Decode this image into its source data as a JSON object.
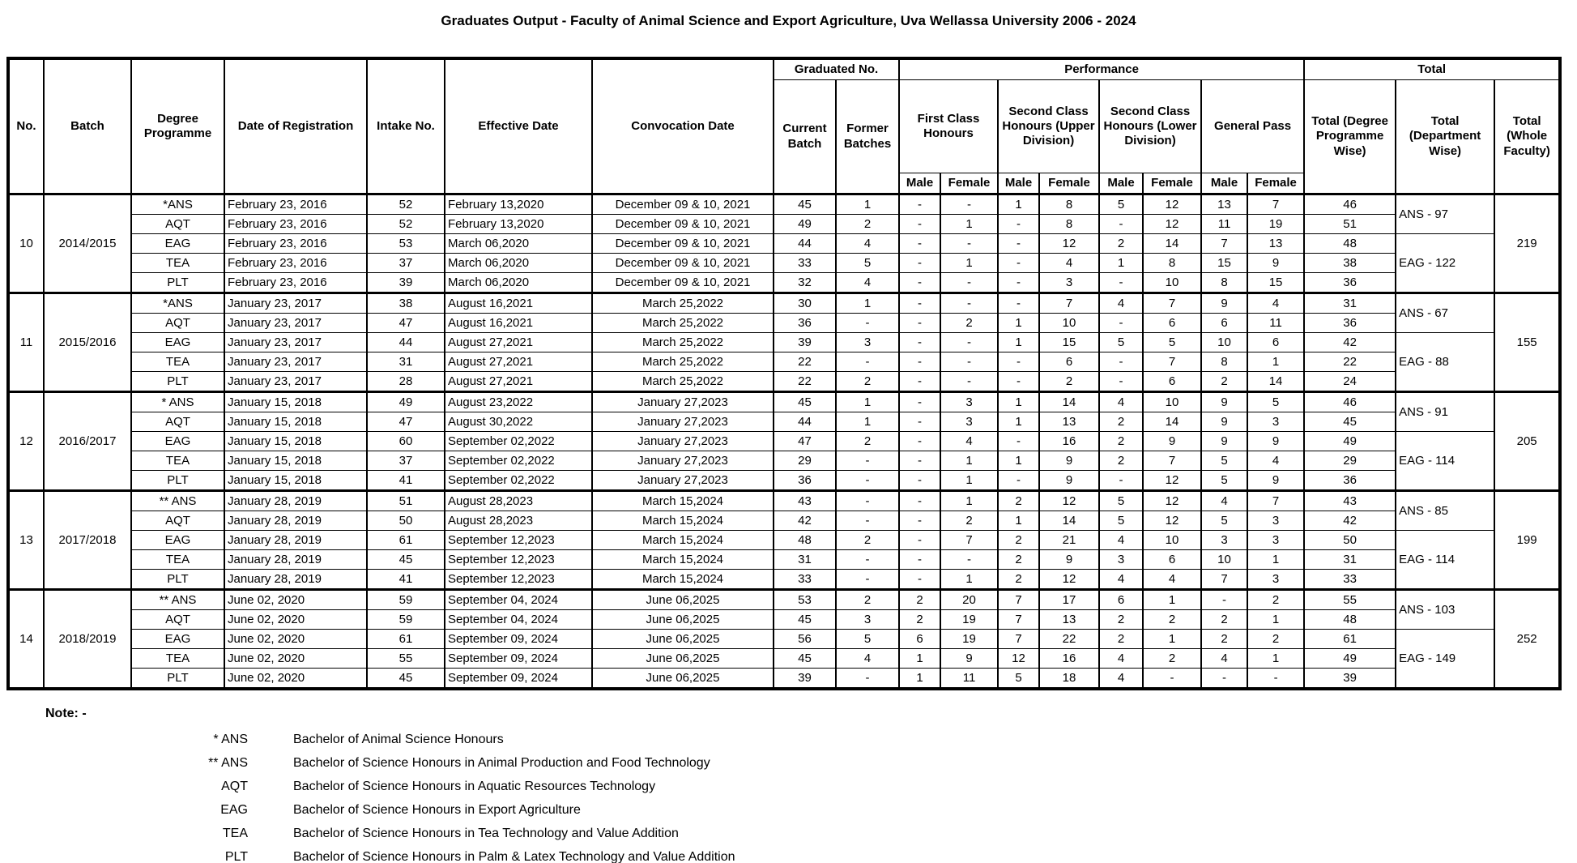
{
  "title": "Graduates Output - Faculty of Animal Science and Export Agriculture, Uva Wellassa University 2006 - 2024",
  "table": {
    "headers": {
      "no": "No.",
      "batch": "Batch",
      "degree_programme": "Degree Programme",
      "date_of_registration": "Date of Registration",
      "intake_no": "Intake No.",
      "effective_date": "Effective Date",
      "convocation_date": "Convocation Date",
      "graduated_no": "Graduated No.",
      "current_batch": "Current Batch",
      "former_batches": "Former Batches",
      "performance": "Performance",
      "first_class_honours": "First Class Honours",
      "second_class_upper": "Second Class Honours (Upper Division)",
      "second_class_lower": "Second Class Honours (Lower Division)",
      "general_pass": "General Pass",
      "male": "Male",
      "female": "Female",
      "total": "Total",
      "total_degree_programme": "Total (Degree Programme Wise)",
      "total_department": "Total (Department Wise)",
      "total_whole_faculty": "Total (Whole Faculty)"
    },
    "batches": [
      {
        "no": "10",
        "batch": "2014/2015",
        "rows": [
          [
            "*ANS",
            "February 23, 2016",
            "52",
            "February 13,2020",
            "December 09 & 10, 2021",
            "45",
            "1",
            "-",
            "-",
            "1",
            "8",
            "5",
            "12",
            "13",
            "7",
            "46"
          ],
          [
            "AQT",
            "February 23, 2016",
            "52",
            "February 13,2020",
            "December 09 & 10, 2021",
            "49",
            "2",
            "-",
            "1",
            "-",
            "8",
            "-",
            "12",
            "11",
            "19",
            "51"
          ],
          [
            "EAG",
            "February 23, 2016",
            "53",
            "March 06,2020",
            "December 09 & 10, 2021",
            "44",
            "4",
            "-",
            "-",
            "-",
            "12",
            "2",
            "14",
            "7",
            "13",
            "48"
          ],
          [
            "TEA",
            "February 23, 2016",
            "37",
            "March 06,2020",
            "December 09 & 10, 2021",
            "33",
            "5",
            "-",
            "1",
            "-",
            "4",
            "1",
            "8",
            "15",
            "9",
            "38"
          ],
          [
            "PLT",
            "February 23, 2016",
            "39",
            "March 06,2020",
            "December 09 & 10, 2021",
            "32",
            "4",
            "-",
            "-",
            "-",
            "3",
            "-",
            "10",
            "8",
            "15",
            "36"
          ]
        ],
        "department_totals": [
          {
            "label": "ANS - 97",
            "rows": 2
          },
          {
            "label": "EAG - 122",
            "rows": 3
          }
        ],
        "faculty_total": "219"
      },
      {
        "no": "11",
        "batch": "2015/2016",
        "rows": [
          [
            "*ANS",
            "January 23, 2017",
            "38",
            "August 16,2021",
            "March 25,2022",
            "30",
            "1",
            "-",
            "-",
            "-",
            "7",
            "4",
            "7",
            "9",
            "4",
            "31"
          ],
          [
            "AQT",
            "January 23, 2017",
            "47",
            "August 16,2021",
            "March 25,2022",
            "36",
            "-",
            "-",
            "2",
            "1",
            "10",
            "-",
            "6",
            "6",
            "11",
            "36"
          ],
          [
            "EAG",
            "January 23, 2017",
            "44",
            "August 27,2021",
            "March 25,2022",
            "39",
            "3",
            "-",
            "-",
            "1",
            "15",
            "5",
            "5",
            "10",
            "6",
            "42"
          ],
          [
            "TEA",
            "January 23, 2017",
            "31",
            "August 27,2021",
            "March 25,2022",
            "22",
            "-",
            "-",
            "-",
            "-",
            "6",
            "-",
            "7",
            "8",
            "1",
            "22"
          ],
          [
            "PLT",
            "January 23, 2017",
            "28",
            "August 27,2021",
            "March 25,2022",
            "22",
            "2",
            "-",
            "-",
            "-",
            "2",
            "-",
            "6",
            "2",
            "14",
            "24"
          ]
        ],
        "department_totals": [
          {
            "label": "ANS - 67",
            "rows": 2
          },
          {
            "label": "EAG - 88",
            "rows": 3
          }
        ],
        "faculty_total": "155"
      },
      {
        "no": "12",
        "batch": "2016/2017",
        "rows": [
          [
            "* ANS",
            "January 15, 2018",
            "49",
            "August 23,2022",
            "January 27,2023",
            "45",
            "1",
            "-",
            "3",
            "1",
            "14",
            "4",
            "10",
            "9",
            "5",
            "46"
          ],
          [
            "AQT",
            "January 15, 2018",
            "47",
            "August 30,2022",
            "January 27,2023",
            "44",
            "1",
            "-",
            "3",
            "1",
            "13",
            "2",
            "14",
            "9",
            "3",
            "45"
          ],
          [
            "EAG",
            "January 15, 2018",
            "60",
            "September 02,2022",
            "January 27,2023",
            "47",
            "2",
            "-",
            "4",
            "-",
            "16",
            "2",
            "9",
            "9",
            "9",
            "49"
          ],
          [
            "TEA",
            "January 15, 2018",
            "37",
            "September 02,2022",
            "January 27,2023",
            "29",
            "-",
            "-",
            "1",
            "1",
            "9",
            "2",
            "7",
            "5",
            "4",
            "29"
          ],
          [
            "PLT",
            "January 15, 2018",
            "41",
            "September 02,2022",
            "January 27,2023",
            "36",
            "-",
            "-",
            "1",
            "-",
            "9",
            "-",
            "12",
            "5",
            "9",
            "36"
          ]
        ],
        "department_totals": [
          {
            "label": "ANS - 91",
            "rows": 2
          },
          {
            "label": "EAG - 114",
            "rows": 3
          }
        ],
        "faculty_total": "205"
      },
      {
        "no": "13",
        "batch": "2017/2018",
        "rows": [
          [
            "** ANS",
            "January 28, 2019",
            "51",
            "August 28,2023",
            "March 15,2024",
            "43",
            "-",
            "-",
            "1",
            "2",
            "12",
            "5",
            "12",
            "4",
            "7",
            "43"
          ],
          [
            "AQT",
            "January 28, 2019",
            "50",
            "August 28,2023",
            "March 15,2024",
            "42",
            "-",
            "-",
            "2",
            "1",
            "14",
            "5",
            "12",
            "5",
            "3",
            "42"
          ],
          [
            "EAG",
            "January 28, 2019",
            "61",
            "September 12,2023",
            "March 15,2024",
            "48",
            "2",
            "-",
            "7",
            "2",
            "21",
            "4",
            "10",
            "3",
            "3",
            "50"
          ],
          [
            "TEA",
            "January 28, 2019",
            "45",
            "September 12,2023",
            "March 15,2024",
            "31",
            "-",
            "-",
            "-",
            "2",
            "9",
            "3",
            "6",
            "10",
            "1",
            "31"
          ],
          [
            "PLT",
            "January 28, 2019",
            "41",
            "September 12,2023",
            "March 15,2024",
            "33",
            "-",
            "-",
            "1",
            "2",
            "12",
            "4",
            "4",
            "7",
            "3",
            "33"
          ]
        ],
        "department_totals": [
          {
            "label": "ANS - 85",
            "rows": 2
          },
          {
            "label": "EAG - 114",
            "rows": 3
          }
        ],
        "faculty_total": "199"
      },
      {
        "no": "14",
        "batch": "2018/2019",
        "rows": [
          [
            "** ANS",
            "June 02, 2020",
            "59",
            "September 04, 2024",
            "June 06,2025",
            "53",
            "2",
            "2",
            "20",
            "7",
            "17",
            "6",
            "1",
            "-",
            "2",
            "55"
          ],
          [
            "AQT",
            "June 02, 2020",
            "59",
            "September 04, 2024",
            "June 06,2025",
            "45",
            "3",
            "2",
            "19",
            "7",
            "13",
            "2",
            "2",
            "2",
            "1",
            "48"
          ],
          [
            "EAG",
            "June 02, 2020",
            "61",
            "September 09, 2024",
            "June 06,2025",
            "56",
            "5",
            "6",
            "19",
            "7",
            "22",
            "2",
            "1",
            "2",
            "2",
            "61"
          ],
          [
            "TEA",
            "June 02, 2020",
            "55",
            "September 09, 2024",
            "June 06,2025",
            "45",
            "4",
            "1",
            "9",
            "12",
            "16",
            "4",
            "2",
            "4",
            "1",
            "49"
          ],
          [
            "PLT",
            "June 02, 2020",
            "45",
            "September 09, 2024",
            "June 06,2025",
            "39",
            "-",
            "1",
            "11",
            "5",
            "18",
            "4",
            "-",
            "-",
            "-",
            "39"
          ]
        ],
        "department_totals": [
          {
            "label": "ANS - 103",
            "rows": 2
          },
          {
            "label": "EAG - 149",
            "rows": 3
          }
        ],
        "faculty_total": "252"
      }
    ]
  },
  "note": {
    "heading": "Note: -",
    "items": [
      {
        "code": "* ANS",
        "description": "Bachelor of Animal Science Honours"
      },
      {
        "code": "** ANS",
        "description": "Bachelor of Science Honours in Animal Production and Food Technology"
      },
      {
        "code": "AQT",
        "description": "Bachelor of Science Honours in Aquatic Resources Technology"
      },
      {
        "code": "EAG",
        "description": "Bachelor of Science Honours in Export Agriculture"
      },
      {
        "code": "TEA",
        "description": "Bachelor of Science Honours in Tea Technology and Value Addition"
      },
      {
        "code": "PLT",
        "description": "Bachelor of Science Honours in Palm & Latex Technology and Value Addition"
      }
    ]
  }
}
